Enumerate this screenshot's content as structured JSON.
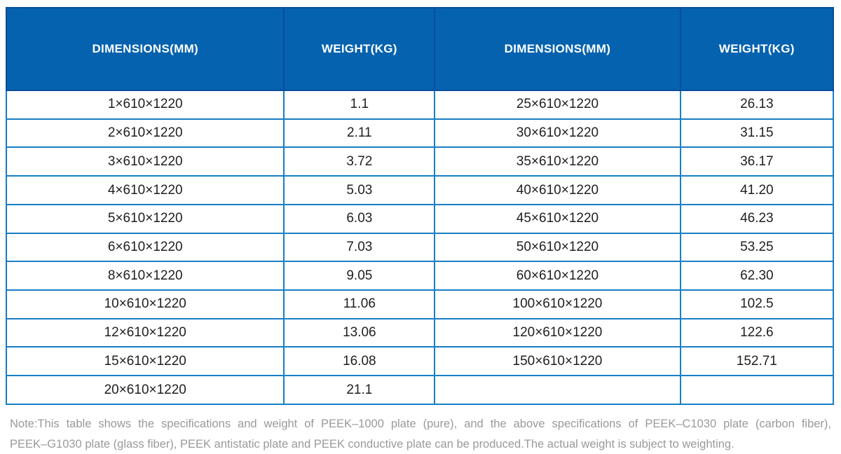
{
  "colors": {
    "header_bg": "#0562ae",
    "header_divider": "#074e9b",
    "grid_border": "#177ec4",
    "header_text": "#ffffff",
    "cell_text": "#1f1f1f",
    "note_text": "#9a9a9a",
    "page_bg": "#ffffff"
  },
  "table": {
    "headers": [
      "DIMENSIONS(MM)",
      "WEIGHT(KG)",
      "DIMENSIONS(MM)",
      "WEIGHT(KG)"
    ],
    "rows": [
      [
        "1×610×1220",
        "1.1",
        "25×610×1220",
        "26.13"
      ],
      [
        "2×610×1220",
        "2.11",
        "30×610×1220",
        "31.15"
      ],
      [
        "3×610×1220",
        "3.72",
        "35×610×1220",
        "36.17"
      ],
      [
        "4×610×1220",
        "5.03",
        "40×610×1220",
        "41.20"
      ],
      [
        "5×610×1220",
        "6.03",
        "45×610×1220",
        "46.23"
      ],
      [
        "6×610×1220",
        "7.03",
        "50×610×1220",
        "53.25"
      ],
      [
        "8×610×1220",
        "9.05",
        "60×610×1220",
        "62.30"
      ],
      [
        "10×610×1220",
        "11.06",
        "100×610×1220",
        "102.5"
      ],
      [
        "12×610×1220",
        "13.06",
        "120×610×1220",
        "122.6"
      ],
      [
        "15×610×1220",
        "16.08",
        "150×610×1220",
        "152.71"
      ],
      [
        "20×610×1220",
        "21.1",
        "",
        ""
      ]
    ]
  },
  "note": {
    "lines": [
      "Note:This table shows the specifications and weight of PEEK–1000 plate (pure), and the above specifications of PEEK–C1030 plate (carbon fiber),",
      "PEEK–G1030 plate (glass fiber), PEEK antistatic plate and PEEK conductive plate can be produced.The actual weight is subject to weighting."
    ]
  }
}
